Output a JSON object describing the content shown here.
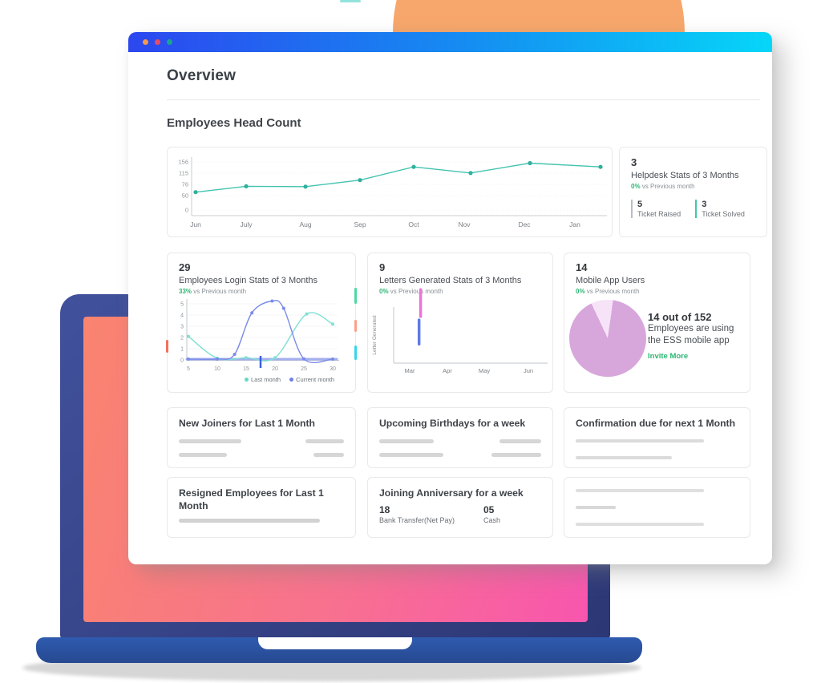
{
  "header": {
    "title": "Overview"
  },
  "window": {
    "dot_colors": [
      "#F2994A",
      "#E64C65",
      "#17A590"
    ]
  },
  "section": {
    "title": "Employees Head Count"
  },
  "helpdesk": {
    "value": "3",
    "title": "Helpdesk Stats of 3 Months",
    "change": "0%",
    "change_note": "vs Previous month",
    "stats": [
      {
        "value": "5",
        "label": "Ticket Raised"
      },
      {
        "value": "3",
        "label": "Ticket Solved"
      }
    ]
  },
  "login": {
    "value": "29",
    "title": "Employees Login Stats of 3 Months",
    "change": "33%",
    "change_note": "vs Previous month",
    "legend": [
      "Last month",
      "Current month"
    ]
  },
  "letters": {
    "value": "9",
    "title": "Letters Generated Stats of 3 Months",
    "change": "0%",
    "change_note": "vs Previous month",
    "ylabel": "Letter Generated"
  },
  "mobile": {
    "value": "14",
    "title": "Mobile App Users",
    "change": "0%",
    "change_note": "vs Previous month",
    "headline": "14 out of 152",
    "line1": "Employees are using",
    "line2": "the ESS mobile app",
    "link": "Invite More"
  },
  "cards": {
    "new_joiners": {
      "title": "New Joiners for Last 1 Month"
    },
    "birthdays": {
      "title": "Upcoming Birthdays for a week"
    },
    "confirmation": {
      "title": "Confirmation due for next 1 Month"
    },
    "resigned": {
      "title": "Resigned Employees for Last 1 Month"
    },
    "anniversary": {
      "title": "Joining Anniversary for a week",
      "stats": [
        {
          "value": "18",
          "label": "Bank Transfer(Net Pay)"
        },
        {
          "value": "05",
          "label": "Cash"
        }
      ]
    }
  },
  "chart_data": [
    {
      "id": "headcount",
      "type": "line",
      "title": "Employees Head Count",
      "categories": [
        "Jun",
        "July",
        "Aug",
        "Sep",
        "Oct",
        "Nov",
        "Dec",
        "Jan"
      ],
      "values": [
        58,
        77,
        76,
        97,
        140,
        120,
        152,
        140
      ],
      "yticks": [
        156,
        115,
        76,
        50,
        0
      ],
      "ylim": [
        0,
        156
      ],
      "line_color": "#44C3AF",
      "dot_color": "#2EB09C",
      "grid": "dotted"
    },
    {
      "id": "login",
      "type": "line",
      "xticks": [
        5,
        10,
        15,
        20,
        25,
        30
      ],
      "yticks": [
        5,
        4,
        3,
        2,
        1,
        0
      ],
      "xlim": [
        5,
        30
      ],
      "ylim": [
        0,
        5
      ],
      "legend_position": "bottom-right",
      "series": [
        {
          "name": "Last month",
          "color": "#7FE0D3",
          "points": [
            [
              5,
              2.1
            ],
            [
              10,
              0.15
            ],
            [
              15,
              0.2
            ],
            [
              20,
              0.2
            ],
            [
              25.5,
              4.1
            ],
            [
              30,
              3.2
            ]
          ]
        },
        {
          "name": "Current month",
          "color": "#7B8BE8",
          "points": [
            [
              5,
              0.08
            ],
            [
              10,
              0.08
            ],
            [
              13,
              0.5
            ],
            [
              16,
              4.2
            ],
            [
              19.5,
              5.25
            ],
            [
              21.5,
              4.6
            ],
            [
              25,
              0.1
            ],
            [
              30,
              0.08
            ]
          ]
        }
      ],
      "baseline_color": "#9AA7EE",
      "marker_tick_x": 17.5,
      "marker_tick_color": "#3D5FE0"
    },
    {
      "id": "letters",
      "type": "bar",
      "categories": [
        "Mar",
        "Apr",
        "May",
        "Jun"
      ],
      "ylabel": "Letter Generated",
      "bars": [
        {
          "name": "previous-month-bar",
          "color": "#EE72D8",
          "x": 0.175,
          "y_top": 1.31,
          "y_bot": 0.83
        },
        {
          "name": "current-month-bar",
          "color": "#5E7AE4",
          "x": 0.165,
          "y_top": 0.77,
          "y_bot": 0.34
        }
      ]
    },
    {
      "id": "mobile-pie",
      "type": "pie",
      "total": 152,
      "used": 14,
      "colors": {
        "used": "#F6E3F7",
        "rest": "#D7A6DB"
      }
    }
  ]
}
